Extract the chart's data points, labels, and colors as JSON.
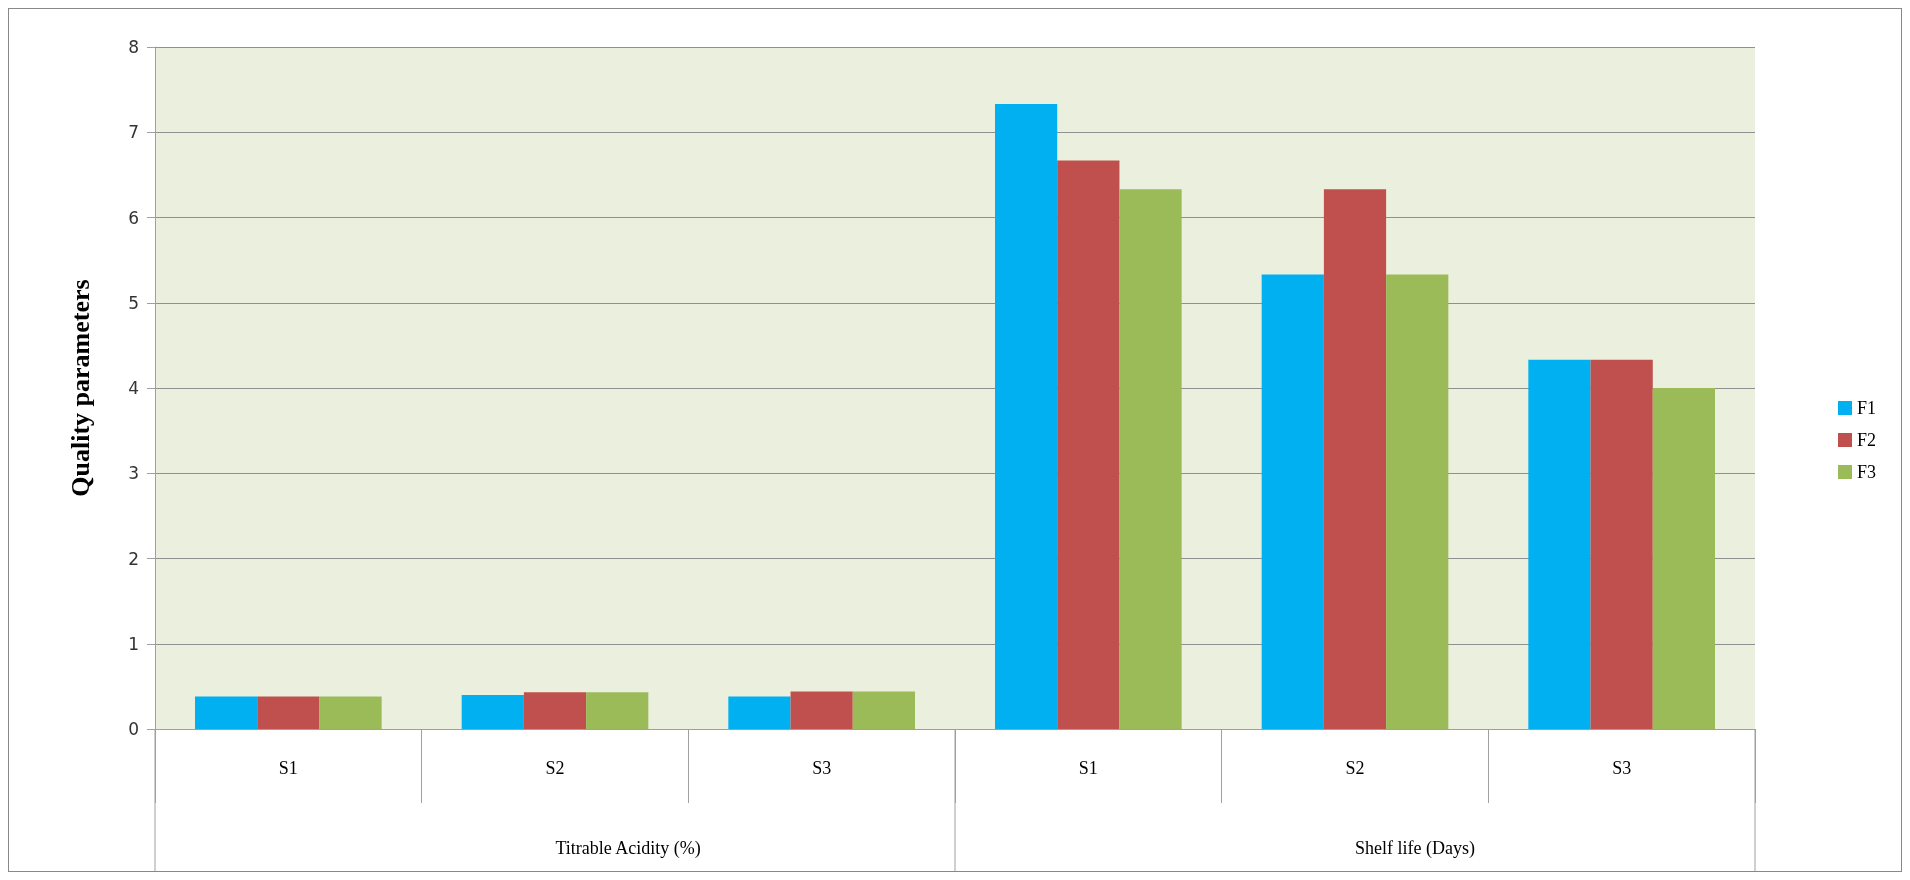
{
  "chart_data": {
    "type": "bar",
    "ylabel": "Quality parameters",
    "categories": [
      "S1",
      "S2",
      "S3",
      "S1",
      "S2",
      "S3"
    ],
    "series": [
      {
        "name": "F1",
        "color": "#00b0f0",
        "values": [
          0.38,
          0.4,
          0.38,
          7.33,
          5.33,
          4.33
        ]
      },
      {
        "name": "F2",
        "color": "#c0504d",
        "values": [
          0.38,
          0.43,
          0.44,
          6.67,
          6.33,
          4.33
        ]
      },
      {
        "name": "F3",
        "color": "#9bbb59",
        "values": [
          0.38,
          0.43,
          0.44,
          6.33,
          5.33,
          4.0
        ]
      }
    ],
    "annotations": [
      "Titrable Acidity (%)",
      "Shelf life (Days)"
    ],
    "ylim": [
      0,
      8
    ],
    "yticks": [
      0,
      1,
      2,
      3,
      4,
      5,
      6,
      7,
      8
    ],
    "grid": "y",
    "legend": "right"
  }
}
